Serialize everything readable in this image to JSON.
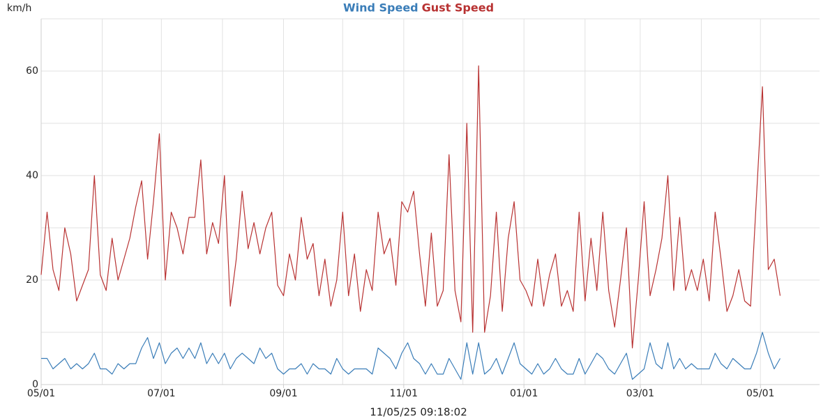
{
  "chart_data": {
    "type": "line",
    "y_label": "km/h",
    "timestamp": "11/05/25 09:18:02",
    "x": [
      "05/01",
      "05/04",
      "05/07",
      "05/10",
      "05/13",
      "05/16",
      "05/19",
      "05/22",
      "05/25",
      "05/28",
      "05/31",
      "06/03",
      "06/06",
      "06/09",
      "06/12",
      "06/15",
      "06/18",
      "06/21",
      "06/24",
      "06/27",
      "06/30",
      "07/03",
      "07/06",
      "07/09",
      "07/12",
      "07/15",
      "07/18",
      "07/21",
      "07/24",
      "07/27",
      "07/30",
      "08/02",
      "08/05",
      "08/08",
      "08/11",
      "08/14",
      "08/17",
      "08/20",
      "08/23",
      "08/26",
      "08/29",
      "09/01",
      "09/04",
      "09/07",
      "09/10",
      "09/13",
      "09/16",
      "09/19",
      "09/22",
      "09/25",
      "09/28",
      "10/01",
      "10/04",
      "10/07",
      "10/10",
      "10/13",
      "10/16",
      "10/19",
      "10/22",
      "10/25",
      "10/28",
      "10/31",
      "11/03",
      "11/06",
      "11/09",
      "11/12",
      "11/15",
      "11/18",
      "11/21",
      "11/24",
      "11/27",
      "11/30",
      "12/03",
      "12/06",
      "12/09",
      "12/12",
      "12/15",
      "12/18",
      "12/21",
      "12/24",
      "12/27",
      "12/30",
      "01/02",
      "01/05",
      "01/08",
      "01/11",
      "01/14",
      "01/17",
      "01/20",
      "01/23",
      "01/26",
      "01/29",
      "02/01",
      "02/04",
      "02/07",
      "02/10",
      "02/13",
      "02/16",
      "02/19",
      "02/22",
      "02/25",
      "02/28",
      "03/03",
      "03/06",
      "03/09",
      "03/12",
      "03/15",
      "03/18",
      "03/21",
      "03/24",
      "03/27",
      "03/30",
      "04/02",
      "04/05",
      "04/08",
      "04/11",
      "04/14",
      "04/17",
      "04/20",
      "04/23",
      "04/26",
      "04/29",
      "05/02",
      "05/05",
      "05/08",
      "05/11"
    ],
    "series": [
      {
        "name": "Wind Speed",
        "color": "#3a7db8",
        "values": [
          5,
          5,
          3,
          4,
          5,
          3,
          4,
          3,
          4,
          6,
          3,
          3,
          2,
          4,
          3,
          4,
          4,
          7,
          9,
          5,
          8,
          4,
          6,
          7,
          5,
          7,
          5,
          8,
          4,
          6,
          4,
          6,
          3,
          5,
          6,
          5,
          4,
          7,
          5,
          6,
          3,
          2,
          3,
          3,
          4,
          2,
          4,
          3,
          3,
          2,
          5,
          3,
          2,
          3,
          3,
          3,
          2,
          7,
          6,
          5,
          3,
          6,
          8,
          5,
          4,
          2,
          4,
          2,
          2,
          5,
          3,
          1,
          8,
          2,
          8,
          2,
          3,
          5,
          2,
          5,
          8,
          4,
          3,
          2,
          4,
          2,
          3,
          5,
          3,
          2,
          2,
          5,
          2,
          4,
          6,
          5,
          3,
          2,
          4,
          6,
          1,
          2,
          3,
          8,
          4,
          3,
          8,
          3,
          5,
          3,
          4,
          3,
          3,
          3,
          6,
          4,
          3,
          5,
          4,
          3,
          3,
          6,
          10,
          6,
          3,
          5
        ]
      },
      {
        "name": "Gust Speed",
        "color": "#b83232",
        "values": [
          21,
          33,
          22,
          18,
          30,
          25,
          16,
          19,
          22,
          40,
          21,
          18,
          28,
          20,
          24,
          28,
          34,
          39,
          24,
          35,
          48,
          20,
          33,
          30,
          25,
          32,
          32,
          43,
          25,
          31,
          27,
          40,
          15,
          24,
          37,
          26,
          31,
          25,
          30,
          33,
          19,
          17,
          25,
          20,
          32,
          24,
          27,
          17,
          24,
          15,
          20,
          33,
          17,
          25,
          14,
          22,
          18,
          33,
          25,
          28,
          19,
          35,
          33,
          37,
          25,
          15,
          29,
          15,
          18,
          44,
          18,
          12,
          50,
          10,
          61,
          10,
          17,
          33,
          14,
          28,
          35,
          20,
          18,
          15,
          24,
          15,
          21,
          25,
          15,
          18,
          14,
          33,
          16,
          28,
          18,
          33,
          18,
          11,
          20,
          30,
          7,
          20,
          35,
          17,
          22,
          28,
          40,
          18,
          32,
          18,
          22,
          18,
          24,
          16,
          33,
          24,
          14,
          17,
          22,
          16,
          15,
          36,
          57,
          22,
          24,
          17
        ]
      }
    ],
    "xlim": [
      "05/01",
      "05/31"
    ],
    "xticks": [
      "05/01",
      "07/01",
      "09/01",
      "11/01",
      "01/01",
      "03/01",
      "05/01"
    ],
    "xgrid": [
      "05/01",
      "06/01",
      "07/01",
      "08/01",
      "09/01",
      "10/01",
      "11/01",
      "12/01",
      "01/01",
      "02/01",
      "03/01",
      "04/01",
      "05/01"
    ],
    "ylim": [
      0,
      70
    ],
    "yticks": [
      0,
      20,
      40,
      60
    ],
    "ygrid": [
      0,
      10,
      20,
      30,
      40,
      50,
      60,
      70
    ],
    "grid": true
  }
}
